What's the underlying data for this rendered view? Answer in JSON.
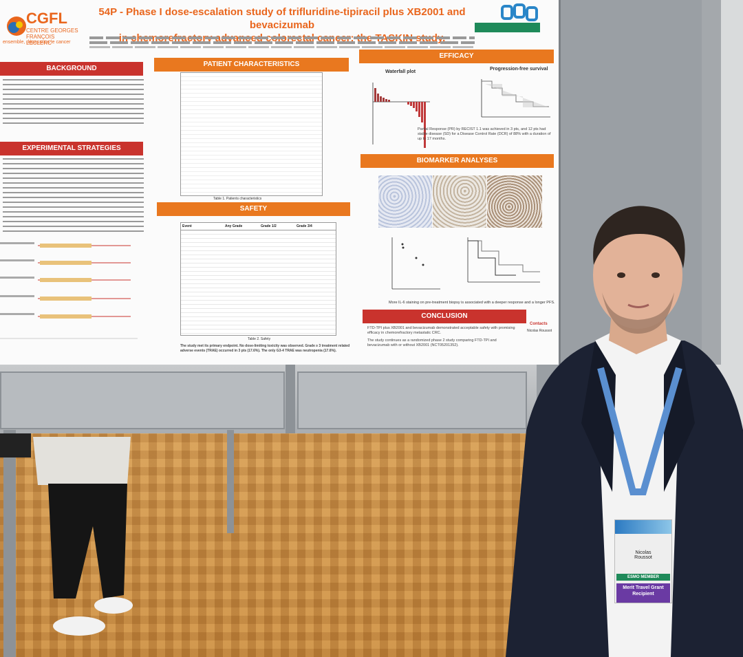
{
  "poster": {
    "logo_name": "CGFL",
    "logo_subtitle": "CENTRE GEORGES FRANÇOIS LECLERC",
    "logo_tagline": "ensemble, dépassons le cancer",
    "title_line1": "54P - Phase I dose-escalation study of trifluridine-tipiracil plus XB2001 and bevacizumab",
    "title_line2": "in chemorefractory advanced colorectal cancer: the TASKIN study.",
    "sections": {
      "background": "BACKGROUND",
      "experimental": "EXPERIMENTAL STRATEGIES",
      "patient": "PATIENT CHARACTERISTICS",
      "safety": "SAFETY",
      "efficacy": "EFFICACY",
      "biomarker": "BIOMARKER ANALYSES",
      "conclusion": "CONCLUSION"
    },
    "efficacy": {
      "waterfall_title": "Waterfall plot",
      "pfs_title": "Progression-free survival",
      "summary": "Partial Response (PR) by RECIST 1.1 was achieved in 3 pts, and 12 pts had stable disease (SD) for a Disease Control Rate (DCR) of 88% with a duration of up to 17 months."
    },
    "patient_caption": "Table 1. Patients characteristics",
    "safety_caption": "Table 2. Safety",
    "safety_summary": "The study met its primary endpoint. No dose-limiting toxicity was observed. Grade ≥ 3 treatment related adverse events (TRAE) occurred in 3 pts (17.6%). The only G3-4 TRAE was neutropenia (17.6%).",
    "safety_headers": [
      "Event",
      "Any Grade",
      "Grade 1/2",
      "Grade 3/4"
    ],
    "biomarker_caption": "More IL-6 staining on pre-treatment biopsy is associated with a deeper response and a longer PFS.",
    "conclusion_points": [
      "FTD-TPI plus XB2001 and bevacizumab demonstrated acceptable safety with promising efficacy in chemorefractory metastatic CRC.",
      "The study continues as a randomized phase 2 study comparing FTD-TPI and bevacizumab with or without XB2001 (NCT05201352)."
    ],
    "contacts_label": "Contacts",
    "contact_name": "Nicolas Roussot"
  },
  "badge": {
    "name_first": "Nicolas",
    "name_last": "Roussot",
    "member": "ESMO MEMBER",
    "award": "Merit Travel Grant Recipient"
  },
  "colors": {
    "accent_orange": "#e9781f",
    "accent_red": "#c9332d",
    "title_orange": "#e9661d"
  }
}
